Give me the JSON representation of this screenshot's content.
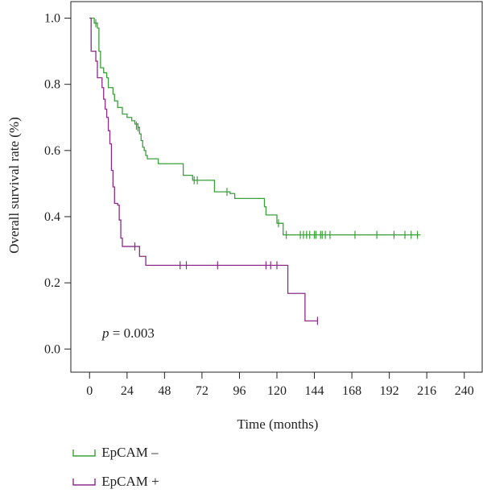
{
  "chart_data": {
    "type": "line",
    "subtype": "kaplan-meier",
    "xlabel": "Time (months)",
    "ylabel": "Overall survival rate (%)",
    "xlim": [
      -12,
      252
    ],
    "ylim": [
      -0.07,
      1.05
    ],
    "xticks": [
      0,
      24,
      48,
      72,
      96,
      120,
      144,
      168,
      192,
      216,
      240
    ],
    "yticks": [
      "0.0",
      "0.2",
      "0.4",
      "0.6",
      "0.8",
      "1.0"
    ],
    "grid": false,
    "legend_position": "bottom-left",
    "annotation": {
      "italic": "p",
      "text": " = 0.003"
    },
    "series": [
      {
        "name": "EpCAM –",
        "color": "#3aa03a",
        "steps": [
          [
            0,
            1.0
          ],
          [
            3,
            0.985
          ],
          [
            5,
            0.97
          ],
          [
            6,
            0.9
          ],
          [
            7,
            0.85
          ],
          [
            9,
            0.835
          ],
          [
            11,
            0.82
          ],
          [
            12,
            0.79
          ],
          [
            15,
            0.77
          ],
          [
            16,
            0.75
          ],
          [
            18,
            0.73
          ],
          [
            21,
            0.71
          ],
          [
            24,
            0.7
          ],
          [
            27,
            0.69
          ],
          [
            29,
            0.68
          ],
          [
            31,
            0.67
          ],
          [
            32,
            0.65
          ],
          [
            33,
            0.63
          ],
          [
            34,
            0.61
          ],
          [
            35,
            0.6
          ],
          [
            36,
            0.585
          ],
          [
            37,
            0.575
          ],
          [
            44,
            0.56
          ],
          [
            60,
            0.525
          ],
          [
            66,
            0.51
          ],
          [
            72,
            0.51
          ],
          [
            80,
            0.475
          ],
          [
            90,
            0.47
          ],
          [
            93,
            0.455
          ],
          [
            111,
            0.455
          ],
          [
            112,
            0.43
          ],
          [
            113,
            0.405
          ],
          [
            120,
            0.38
          ],
          [
            124,
            0.345
          ],
          [
            212,
            0.345
          ]
        ],
        "censored": [
          [
            4,
            0.985
          ],
          [
            30,
            0.675
          ],
          [
            31,
            0.67
          ],
          [
            67,
            0.51
          ],
          [
            69,
            0.51
          ],
          [
            88,
            0.475
          ],
          [
            121,
            0.38
          ],
          [
            126,
            0.345
          ],
          [
            135,
            0.345
          ],
          [
            137,
            0.345
          ],
          [
            139,
            0.345
          ],
          [
            141,
            0.345
          ],
          [
            144,
            0.345
          ],
          [
            145,
            0.345
          ],
          [
            148,
            0.345
          ],
          [
            149,
            0.345
          ],
          [
            151,
            0.345
          ],
          [
            154,
            0.345
          ],
          [
            170,
            0.345
          ],
          [
            184,
            0.345
          ],
          [
            195,
            0.345
          ],
          [
            202,
            0.345
          ],
          [
            206,
            0.345
          ],
          [
            210,
            0.345
          ]
        ]
      },
      {
        "name": "EpCAM +",
        "color": "#8b2d86",
        "steps": [
          [
            0,
            1.0
          ],
          [
            1,
            0.9
          ],
          [
            4,
            0.87
          ],
          [
            5,
            0.82
          ],
          [
            8,
            0.79
          ],
          [
            9,
            0.755
          ],
          [
            10,
            0.725
          ],
          [
            11,
            0.7
          ],
          [
            12,
            0.66
          ],
          [
            13,
            0.62
          ],
          [
            14,
            0.54
          ],
          [
            15,
            0.49
          ],
          [
            16,
            0.44
          ],
          [
            18,
            0.435
          ],
          [
            19,
            0.39
          ],
          [
            20,
            0.335
          ],
          [
            21,
            0.31
          ],
          [
            30,
            0.31
          ],
          [
            32,
            0.28
          ],
          [
            35,
            0.28
          ],
          [
            36,
            0.253
          ],
          [
            126,
            0.253
          ],
          [
            127,
            0.168
          ],
          [
            137,
            0.168
          ],
          [
            138,
            0.085
          ],
          [
            146,
            0.085
          ]
        ],
        "censored": [
          [
            29,
            0.31
          ],
          [
            58,
            0.253
          ],
          [
            62,
            0.253
          ],
          [
            82,
            0.253
          ],
          [
            113,
            0.253
          ],
          [
            116,
            0.253
          ],
          [
            120,
            0.253
          ],
          [
            146,
            0.085
          ]
        ]
      }
    ]
  }
}
